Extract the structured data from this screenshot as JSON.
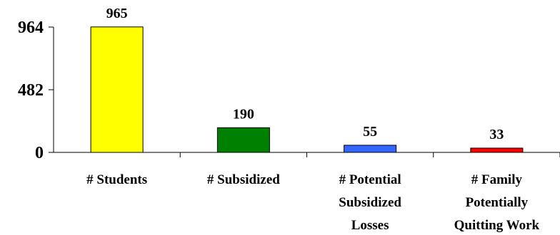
{
  "chart_data": {
    "type": "bar",
    "categories": [
      [
        "# Students"
      ],
      [
        "# Subsidized"
      ],
      [
        "# Potential",
        "Subsidized",
        "Losses"
      ],
      [
        "# Family",
        "Potentially",
        "Quitting Work"
      ]
    ],
    "values": [
      965,
      190,
      55,
      33
    ],
    "data_labels": [
      "965",
      "190",
      "55",
      "33"
    ],
    "y_ticks": [
      0,
      482,
      964
    ],
    "y_tick_labels": [
      "0",
      "482",
      "964"
    ],
    "ylim": [
      0,
      964
    ],
    "grid": false,
    "legend": "none",
    "title": "",
    "xlabel": "",
    "ylabel": "",
    "colors": [
      "#FFFF00",
      "#008000",
      "#3366FF",
      "#FF0000"
    ]
  }
}
